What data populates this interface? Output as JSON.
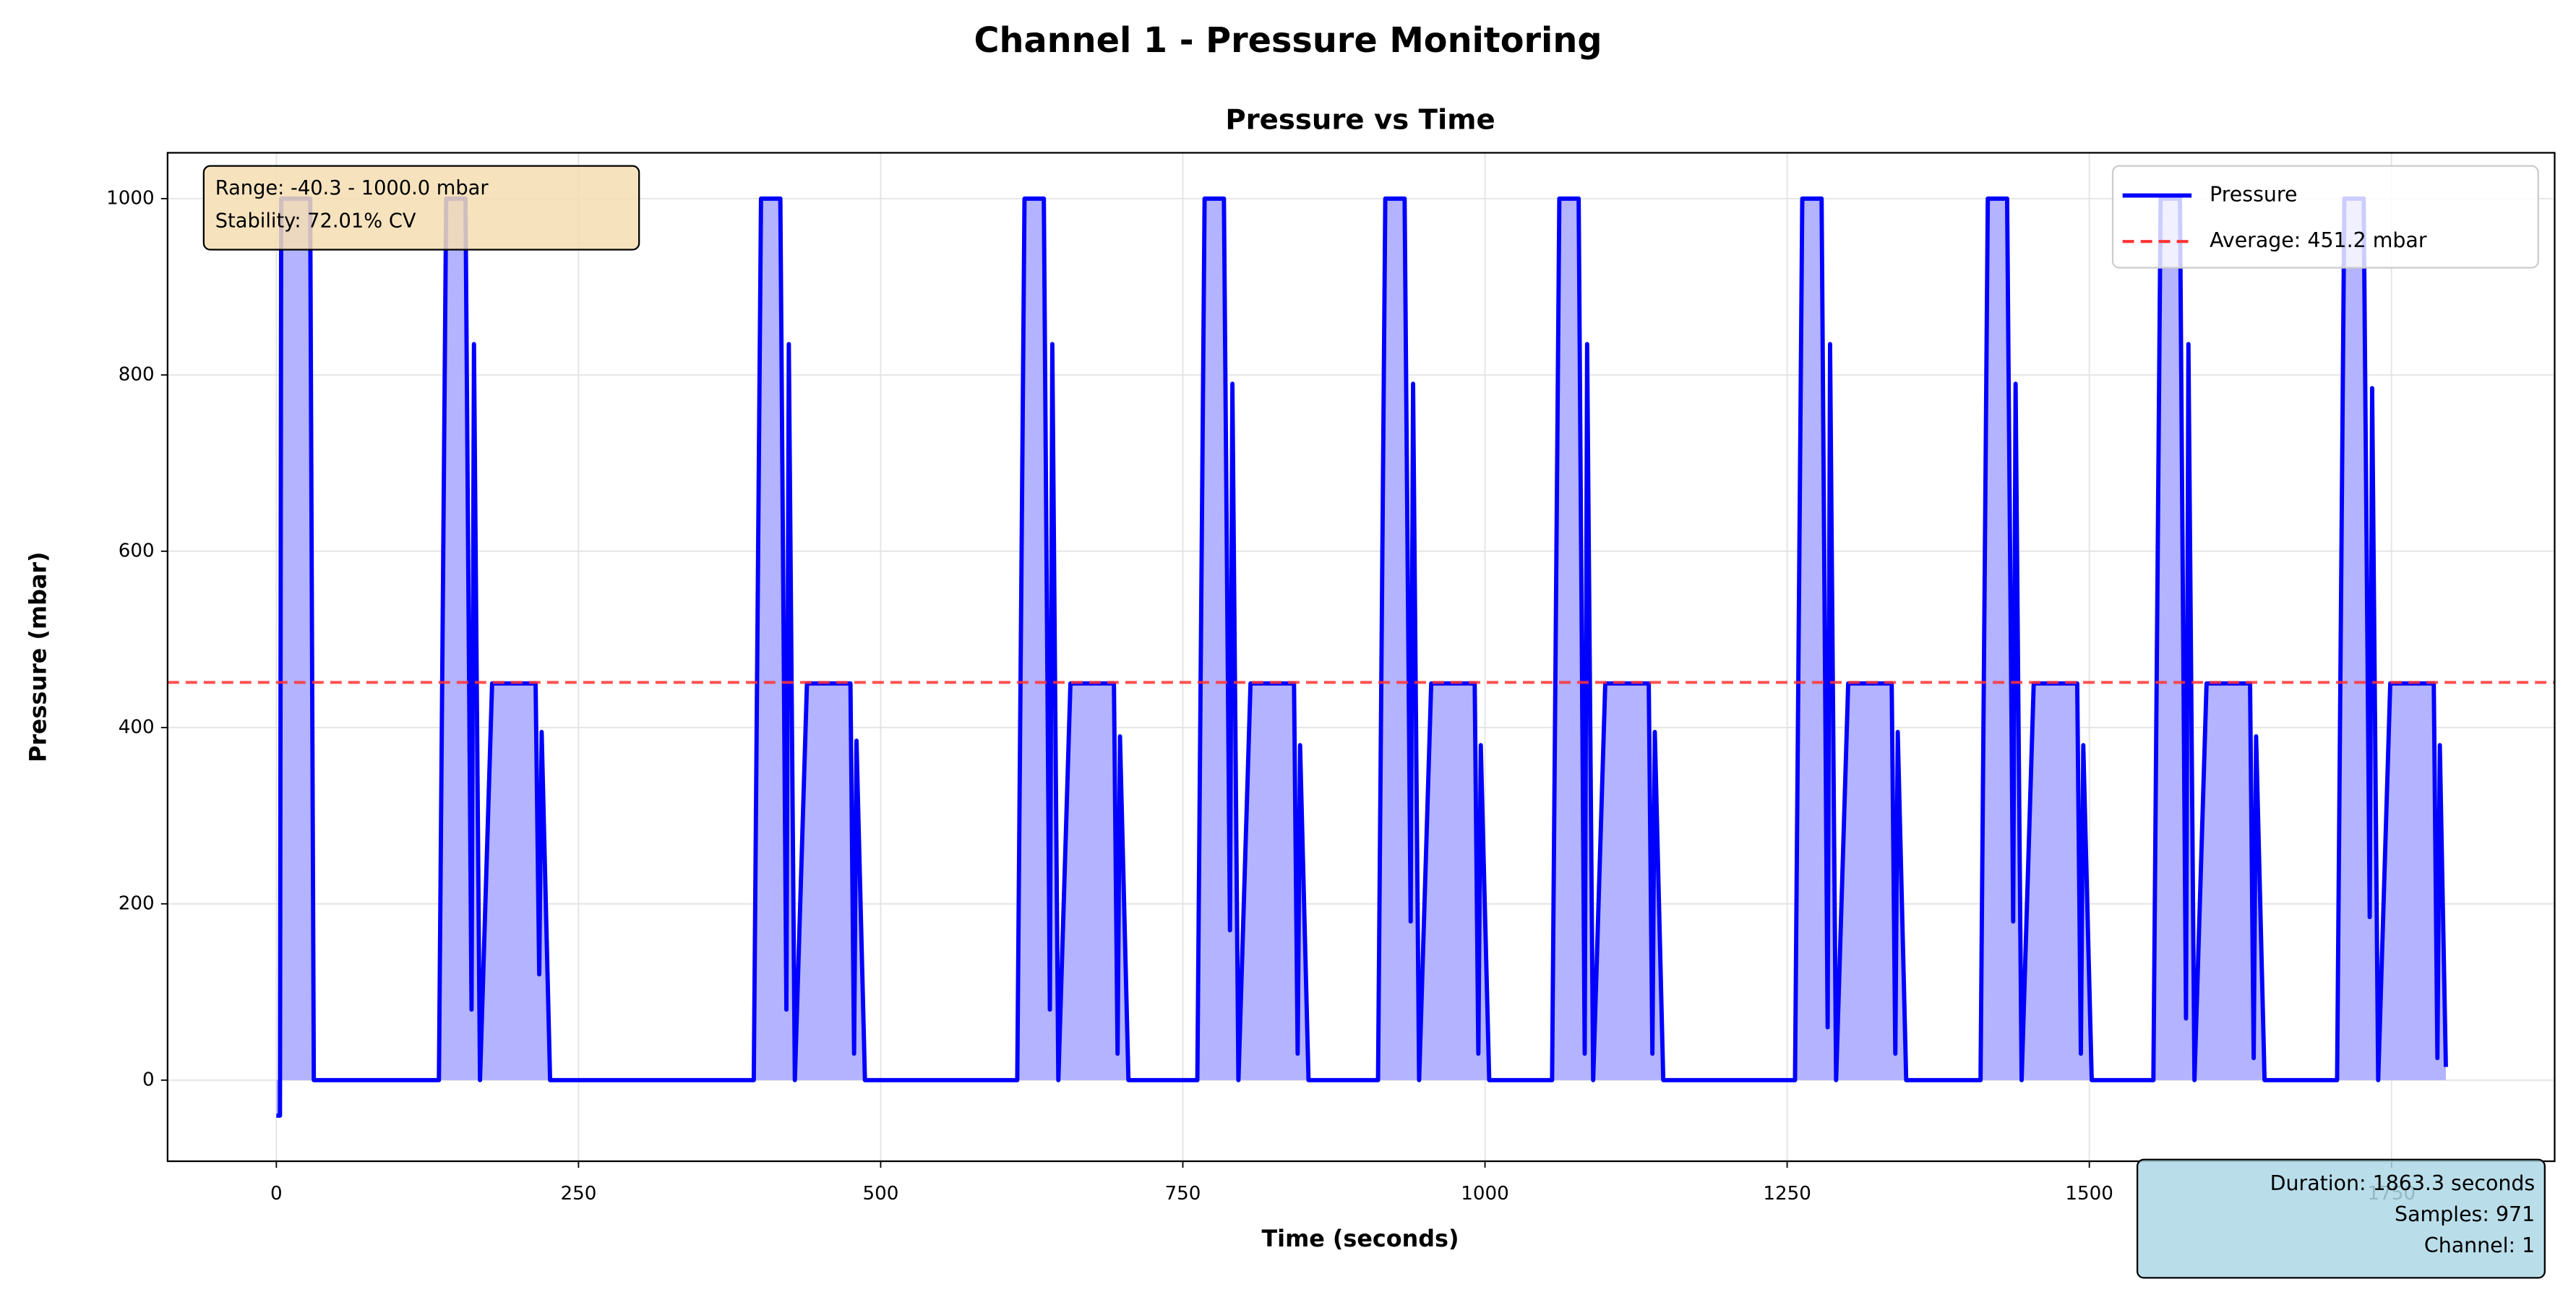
{
  "chart_data": {
    "type": "line",
    "title": "Channel 1 - Pressure Monitoring",
    "subtitle": "Pressure vs Time",
    "x_label": "Time (seconds)",
    "y_label": "Pressure (mbar)",
    "xlim": [
      -90,
      1885
    ],
    "ylim": [
      -92,
      1052
    ],
    "xticks": [
      0,
      250,
      500,
      750,
      1000,
      1250,
      1500,
      1750
    ],
    "yticks": [
      0,
      200,
      400,
      600,
      800,
      1000
    ],
    "grid": true,
    "legend": "upper right",
    "x": [
      0,
      3,
      4,
      28,
      31,
      134.5,
      140.5,
      156.5,
      161.5,
      163.5,
      168.5,
      178.5,
      214.5,
      217.5,
      219.5,
      226.5,
      395,
      401,
      417,
      422,
      424,
      429,
      439,
      475,
      478,
      480,
      487,
      613,
      619,
      635,
      640,
      642,
      647,
      657,
      693,
      696,
      698,
      705,
      762,
      768,
      784,
      789,
      791,
      796,
      806,
      842,
      845,
      847,
      854,
      911.5,
      917.5,
      933.5,
      938.5,
      940.5,
      945.5,
      955.5,
      991.5,
      994.5,
      996.5,
      1003.5,
      1055.5,
      1061.5,
      1077.5,
      1082.5,
      1084.5,
      1089.5,
      1099.5,
      1135.5,
      1138.5,
      1140.5,
      1147.5,
      1256.5,
      1262.5,
      1278.5,
      1283.5,
      1285.5,
      1290.5,
      1300.5,
      1336.5,
      1339.5,
      1341.5,
      1348.5,
      1410,
      1416,
      1432,
      1437,
      1439,
      1444,
      1454,
      1490,
      1493,
      1495,
      1502,
      1553,
      1559,
      1575,
      1580,
      1582,
      1587,
      1597,
      1633,
      1636,
      1638,
      1645,
      1705,
      1711,
      1727,
      1732,
      1734,
      1739,
      1749,
      1785,
      1788,
      1790,
      1795
    ],
    "series": [
      {
        "name": "Pressure",
        "color": "#0000ff",
        "fill": "#b3b3ff",
        "values": [
          -40.3,
          -40.3,
          1000,
          1000,
          0,
          0,
          1000,
          1000,
          80,
          835,
          0,
          450,
          450,
          120,
          395,
          0,
          0,
          1000,
          1000,
          80,
          835,
          0,
          450,
          450,
          30,
          385,
          0,
          0,
          1000,
          1000,
          80,
          835,
          0,
          450,
          450,
          30,
          390,
          0,
          0,
          1000,
          1000,
          170,
          790,
          0,
          450,
          450,
          30,
          380,
          0,
          0,
          1000,
          1000,
          180,
          790,
          0,
          450,
          450,
          30,
          380,
          0,
          0,
          1000,
          1000,
          30,
          835,
          0,
          450,
          450,
          30,
          395,
          0,
          0,
          1000,
          1000,
          60,
          835,
          0,
          450,
          450,
          30,
          395,
          0,
          0,
          1000,
          1000,
          180,
          790,
          0,
          450,
          450,
          30,
          380,
          0,
          0,
          1000,
          1000,
          70,
          835,
          0,
          450,
          450,
          25,
          390,
          0,
          0,
          1000,
          1000,
          185,
          785,
          0,
          450,
          450,
          25,
          380,
          15
        ]
      }
    ],
    "average_line": {
      "name": "Average: 451.2 mbar",
      "value": 451.2,
      "color": "#ff3333"
    },
    "annotation_box": [
      "Range: -40.3 - 1000.0 mbar",
      "Stability: 72.01% CV"
    ],
    "info_box": [
      "Duration: 1863.3 seconds",
      "Samples: 971",
      "Channel: 1"
    ]
  }
}
